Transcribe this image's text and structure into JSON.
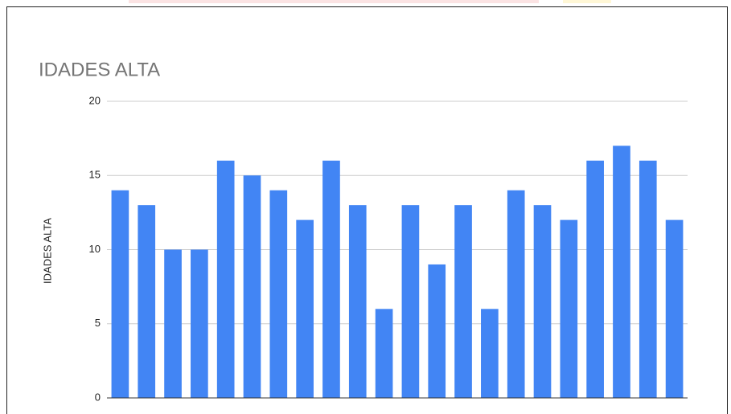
{
  "chart_data": {
    "type": "bar",
    "title": "IDADES ALTA",
    "y_label": "IDADES ALTA",
    "categories": [
      null,
      null,
      null,
      null,
      null,
      null,
      null,
      null,
      null,
      null,
      null,
      null,
      null,
      null,
      null,
      null,
      null,
      null,
      null,
      null,
      null,
      null
    ],
    "values": [
      14,
      13,
      10,
      10,
      16,
      15,
      14,
      12,
      16,
      13,
      6,
      13,
      9,
      13,
      6,
      14,
      13,
      12,
      16,
      17,
      16,
      12
    ],
    "color": "#4285f4",
    "ylim": [
      0,
      20
    ],
    "yticks": [
      0,
      5,
      10,
      15,
      20
    ],
    "grid": true
  }
}
